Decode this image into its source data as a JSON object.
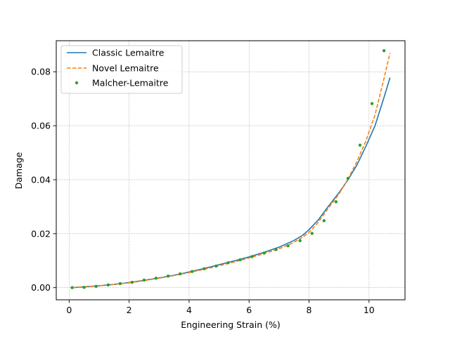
{
  "chart_data": {
    "type": "line",
    "xlabel": "Engineering Strain (%)",
    "ylabel": "Damage",
    "xlim": [
      -0.43,
      11.2
    ],
    "ylim": [
      -0.0045,
      0.0915
    ],
    "x_ticks": [
      0,
      2,
      4,
      6,
      8,
      10
    ],
    "y_ticks": [
      0.0,
      0.02,
      0.04,
      0.06,
      0.08
    ],
    "x_tick_labels": [
      "0",
      "2",
      "4",
      "6",
      "8",
      "10"
    ],
    "y_tick_labels": [
      "0.00",
      "0.02",
      "0.04",
      "0.06",
      "0.08"
    ],
    "grid": true,
    "legend_position": "top-left",
    "colors": {
      "classic": "#1f77b4",
      "novel": "#ff7f0e",
      "malcher": "#2ca02c",
      "grid": "#b0b0b0"
    },
    "series": [
      {
        "name": "Classic Lemaitre",
        "style": "solid",
        "x": [
          0.1,
          0.5,
          1.0,
          1.5,
          2.0,
          2.5,
          3.0,
          3.5,
          4.0,
          4.5,
          5.0,
          5.5,
          6.0,
          6.5,
          7.0,
          7.5,
          7.8,
          8.0,
          8.3,
          8.6,
          9.0,
          9.3,
          9.6,
          9.9,
          10.2,
          10.5,
          10.7
        ],
        "y": [
          0.0,
          0.0003,
          0.0007,
          0.0012,
          0.0019,
          0.0027,
          0.0036,
          0.0046,
          0.0058,
          0.0071,
          0.0085,
          0.0099,
          0.0114,
          0.0131,
          0.015,
          0.0175,
          0.0195,
          0.0215,
          0.025,
          0.0295,
          0.0352,
          0.04,
          0.0455,
          0.0525,
          0.06,
          0.0705,
          0.0778
        ]
      },
      {
        "name": "Novel Lemaitre",
        "style": "dashed",
        "x": [
          0.1,
          0.5,
          1.0,
          1.5,
          2.0,
          2.5,
          3.0,
          3.5,
          4.0,
          4.5,
          5.0,
          5.5,
          6.0,
          6.5,
          7.0,
          7.5,
          7.8,
          8.0,
          8.3,
          8.6,
          9.0,
          9.3,
          9.6,
          9.9,
          10.2,
          10.5,
          10.7
        ],
        "y": [
          0.0,
          0.0003,
          0.0007,
          0.0012,
          0.0018,
          0.0026,
          0.0035,
          0.0045,
          0.0056,
          0.0068,
          0.0081,
          0.0095,
          0.011,
          0.0126,
          0.0144,
          0.0168,
          0.0188,
          0.0205,
          0.0241,
          0.0288,
          0.0347,
          0.0403,
          0.0468,
          0.0545,
          0.064,
          0.0775,
          0.087
        ]
      },
      {
        "name": "Malcher-Lemaitre",
        "style": "markers",
        "x": [
          0.1,
          0.5,
          0.9,
          1.3,
          1.7,
          2.1,
          2.5,
          2.9,
          3.3,
          3.7,
          4.1,
          4.5,
          4.9,
          5.3,
          5.7,
          6.1,
          6.5,
          6.9,
          7.3,
          7.7,
          8.1,
          8.5,
          8.9,
          9.3,
          9.7,
          10.1,
          10.5
        ],
        "y": [
          0.0,
          0.0001,
          0.0005,
          0.001,
          0.0015,
          0.002,
          0.0028,
          0.0035,
          0.0043,
          0.0051,
          0.006,
          0.007,
          0.008,
          0.0092,
          0.0103,
          0.0115,
          0.0128,
          0.0141,
          0.0155,
          0.0174,
          0.0201,
          0.0248,
          0.0318,
          0.0405,
          0.0528,
          0.0682,
          0.0878
        ]
      }
    ]
  }
}
